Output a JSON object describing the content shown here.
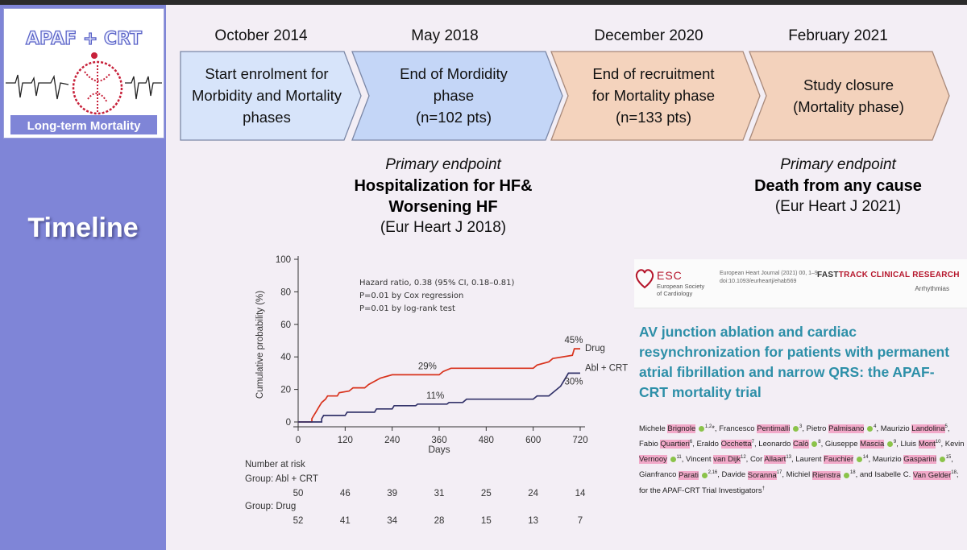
{
  "logo": {
    "title": "APAF + CRT",
    "subtitle": "Long-term Mortality"
  },
  "sidebar_label": "Timeline",
  "timeline": [
    {
      "date": "October 2014",
      "lines": [
        "Start enrolment for",
        "Morbidity and Mortality",
        "phases"
      ],
      "color": "#d5e3fa"
    },
    {
      "date": "May 2018",
      "lines": [
        "End of Mordidity",
        "phase",
        "(n=102 pts)"
      ],
      "color": "#c5d7f7"
    },
    {
      "date": "December 2020",
      "lines": [
        "End of recruitment",
        "for Mortality phase",
        "(n=133 pts)"
      ],
      "color": "#f3d2bc"
    },
    {
      "date": "February 2021",
      "lines": [
        "Study closure",
        "(Mortality phase)"
      ],
      "color": "#f3d2bc"
    }
  ],
  "endpoint_left": {
    "label": "Primary endpoint",
    "title_line1": "Hospitalization for HF&",
    "title_line2": "Worsening HF",
    "ref": "(Eur Heart J 2018)"
  },
  "endpoint_right": {
    "label": "Primary endpoint",
    "title": "Death from any cause",
    "ref": "(Eur Heart J 2021)"
  },
  "chart_data": {
    "type": "line",
    "title": "",
    "xlabel": "Days",
    "ylabel": "Cumulative probability (%)",
    "xlim": [
      0,
      720
    ],
    "ylim": [
      0,
      100
    ],
    "xticks": [
      0,
      120,
      240,
      360,
      480,
      600,
      720
    ],
    "yticks": [
      0,
      20,
      40,
      60,
      80,
      100
    ],
    "annotations": [
      "Hazard ratio, 0.38 (95% CI, 0.18–0.81)",
      "P=0.01 by Cox regression",
      "P=0.01 by log-rank test"
    ],
    "series": [
      {
        "name": "Drug",
        "color": "#d8321c",
        "end_label": "45%",
        "mid_label": "29%",
        "mid_label_x": 330,
        "points": [
          [
            0,
            0
          ],
          [
            35,
            0
          ],
          [
            35,
            2
          ],
          [
            40,
            4
          ],
          [
            45,
            6
          ],
          [
            50,
            8
          ],
          [
            55,
            10
          ],
          [
            60,
            12
          ],
          [
            70,
            14
          ],
          [
            75,
            16
          ],
          [
            100,
            16
          ],
          [
            105,
            18
          ],
          [
            130,
            19
          ],
          [
            140,
            21
          ],
          [
            170,
            21
          ],
          [
            180,
            23
          ],
          [
            195,
            25
          ],
          [
            210,
            27
          ],
          [
            240,
            29
          ],
          [
            360,
            29
          ],
          [
            370,
            31
          ],
          [
            390,
            33
          ],
          [
            600,
            33
          ],
          [
            610,
            35
          ],
          [
            640,
            37
          ],
          [
            650,
            39
          ],
          [
            700,
            41
          ],
          [
            705,
            45
          ],
          [
            720,
            45
          ]
        ]
      },
      {
        "name": "Abl + CRT",
        "color": "#33336a",
        "end_label": "30%",
        "mid_label": "11%",
        "mid_label_x": 350,
        "points": [
          [
            0,
            0
          ],
          [
            60,
            0
          ],
          [
            60,
            2
          ],
          [
            65,
            4
          ],
          [
            120,
            4
          ],
          [
            125,
            6
          ],
          [
            195,
            6
          ],
          [
            200,
            8
          ],
          [
            240,
            8
          ],
          [
            245,
            10
          ],
          [
            300,
            10
          ],
          [
            305,
            11
          ],
          [
            380,
            11
          ],
          [
            385,
            12
          ],
          [
            420,
            12
          ],
          [
            430,
            14
          ],
          [
            600,
            14
          ],
          [
            610,
            16
          ],
          [
            640,
            16
          ],
          [
            650,
            18
          ],
          [
            670,
            22
          ],
          [
            680,
            26
          ],
          [
            690,
            30
          ],
          [
            720,
            30
          ]
        ]
      }
    ],
    "risk_table": {
      "title": "Number at risk",
      "groups": [
        {
          "label": "Group:  Abl + CRT",
          "values": [
            50,
            46,
            39,
            31,
            25,
            24,
            14
          ]
        },
        {
          "label": "Group:  Drug",
          "values": [
            52,
            41,
            34,
            28,
            15,
            13,
            7
          ]
        }
      ]
    }
  },
  "paper": {
    "esc_name": "ESC",
    "esc_sub1": "European Society",
    "esc_sub2": "of Cardiology",
    "journal_ref1": "European Heart Journal (2021) 00, 1–9",
    "journal_ref2": "doi:10.1093/eurheartj/ehab569",
    "fasttrack_a": "FAST",
    "fasttrack_b": "TRACK CLINICAL RESEARCH",
    "section": "Arrhythmias",
    "title": "AV junction ablation and cardiac resynchronization for patients with permanent atrial fibrillation and narrow QRS: the APAF-CRT mortality trial",
    "trailer": "; for the APAF-CRT Trial Investigators"
  }
}
